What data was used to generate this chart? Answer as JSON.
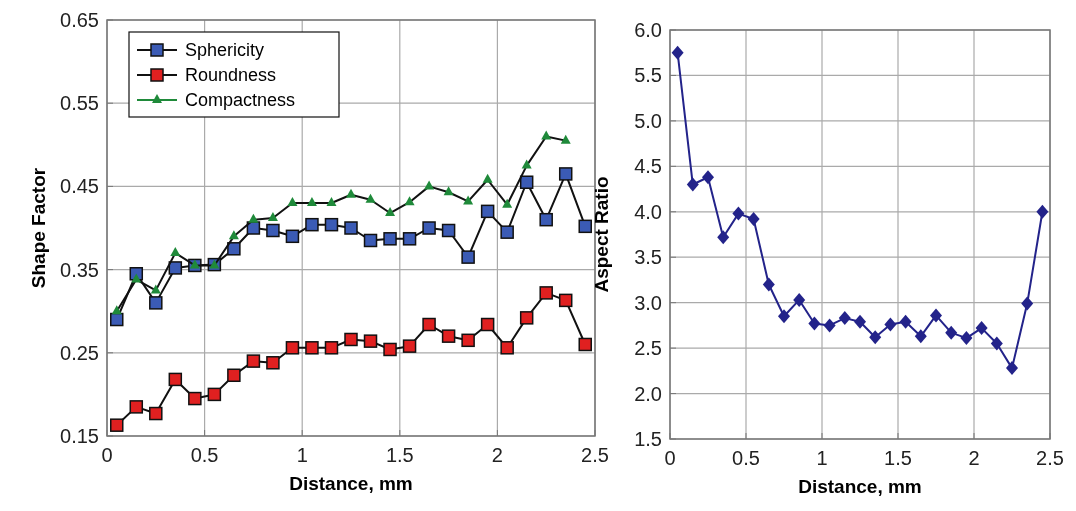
{
  "chart_data": [
    {
      "type": "line",
      "xlabel": "Distance, mm",
      "ylabel": "Shape Factor",
      "x": [
        0.05,
        0.15,
        0.25,
        0.35,
        0.45,
        0.55,
        0.65,
        0.75,
        0.85,
        0.95,
        1.05,
        1.15,
        1.25,
        1.35,
        1.45,
        1.55,
        1.65,
        1.75,
        1.85,
        1.95,
        2.05,
        2.15,
        2.25,
        2.35,
        2.45
      ],
      "xlim": [
        0,
        2.5
      ],
      "xticks": [
        0,
        0.5,
        1,
        1.5,
        2,
        2.5
      ],
      "ylim": [
        0.15,
        0.65
      ],
      "yticks": [
        0.15,
        0.25,
        0.35,
        0.45,
        0.55,
        0.65
      ],
      "grid": true,
      "legend": "top left",
      "series": [
        {
          "name": "Sphericity",
          "color": "#3b5bb5",
          "marker": "square",
          "values": [
            0.29,
            0.345,
            0.31,
            0.352,
            0.355,
            0.356,
            0.375,
            0.4,
            0.397,
            0.39,
            0.404,
            0.404,
            0.4,
            0.385,
            0.387,
            0.387,
            0.4,
            0.397,
            0.365,
            0.42,
            0.395,
            0.455,
            0.41,
            0.465,
            0.402
          ]
        },
        {
          "name": "Roundness",
          "color": "#e02020",
          "marker": "square",
          "values": [
            0.163,
            0.185,
            0.177,
            0.218,
            0.195,
            0.2,
            0.223,
            0.24,
            0.238,
            0.256,
            0.256,
            0.256,
            0.266,
            0.264,
            0.254,
            0.258,
            0.284,
            0.27,
            0.265,
            0.284,
            0.256,
            0.292,
            0.322,
            0.313,
            0.26
          ]
        },
        {
          "name": "Compactness",
          "color": "#1f8a3a",
          "marker": "triangle",
          "values": [
            0.3,
            0.338,
            0.325,
            0.37,
            0.355,
            0.355,
            0.39,
            0.41,
            0.412,
            0.43,
            0.43,
            0.43,
            0.44,
            0.434,
            0.418,
            0.431,
            0.45,
            0.443,
            0.432,
            0.458,
            0.428,
            0.475,
            0.51,
            0.505,
            null
          ]
        }
      ]
    },
    {
      "type": "line",
      "xlabel": "Distance, mm",
      "ylabel": "Aspect Ratio",
      "x": [
        0.05,
        0.15,
        0.25,
        0.35,
        0.45,
        0.55,
        0.65,
        0.75,
        0.85,
        0.95,
        1.05,
        1.15,
        1.25,
        1.35,
        1.45,
        1.55,
        1.65,
        1.75,
        1.85,
        1.95,
        2.05,
        2.15,
        2.25,
        2.35,
        2.45
      ],
      "xlim": [
        0,
        2.5
      ],
      "xticks": [
        0,
        0.5,
        1,
        1.5,
        2,
        2.5
      ],
      "ylim": [
        1.5,
        6.0
      ],
      "yticks": [
        {
          "value": 1.5,
          "label": "1.5"
        },
        {
          "value": 2,
          "label": "2.0"
        },
        {
          "value": 2.5,
          "label": "2.5"
        },
        {
          "value": 3,
          "label": "3.0"
        },
        {
          "value": 3.5,
          "label": "3.5"
        },
        {
          "value": 4,
          "label": "4.0"
        },
        {
          "value": 4.5,
          "label": "4.5"
        },
        {
          "value": 5,
          "label": "5.0"
        },
        {
          "value": 5.5,
          "label": "5.5"
        },
        {
          "value": 6,
          "label": "6.0"
        }
      ],
      "grid": true,
      "marker": "diamond",
      "series": [
        {
          "color": "#23238a",
          "values": [
            5.75,
            4.3,
            4.38,
            3.72,
            3.98,
            3.92,
            3.2,
            2.85,
            3.03,
            2.77,
            2.75,
            2.83,
            2.79,
            2.62,
            2.76,
            2.79,
            2.63,
            2.86,
            2.67,
            2.61,
            2.72,
            2.55,
            2.28,
            2.99,
            4.0
          ]
        }
      ]
    }
  ]
}
